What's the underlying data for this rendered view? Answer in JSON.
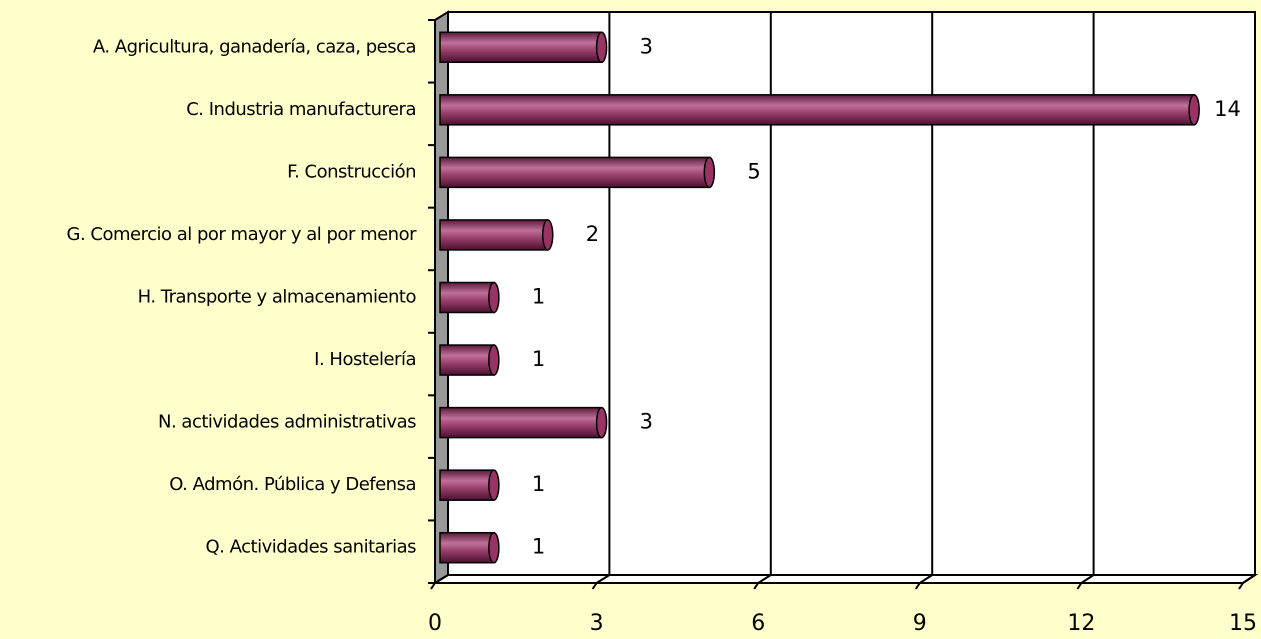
{
  "chart_data": {
    "type": "bar",
    "orientation": "horizontal",
    "categories": [
      "A. Agricultura, ganadería, caza, pesca",
      "C. Industria manufacturera",
      "F. Construcción",
      "G. Comercio al por mayor y al por menor",
      "H. Transporte y almacenamiento",
      "I. Hostelería",
      "N. actividades administrativas",
      "O. Admón. Pública y Defensa",
      "Q. Actividades sanitarias"
    ],
    "values": [
      3,
      14,
      5,
      2,
      1,
      1,
      3,
      1,
      1
    ],
    "color": "#993366",
    "xlim": [
      0,
      15
    ],
    "xticks": [
      0,
      3,
      6,
      9,
      12,
      15
    ],
    "grid": true
  }
}
